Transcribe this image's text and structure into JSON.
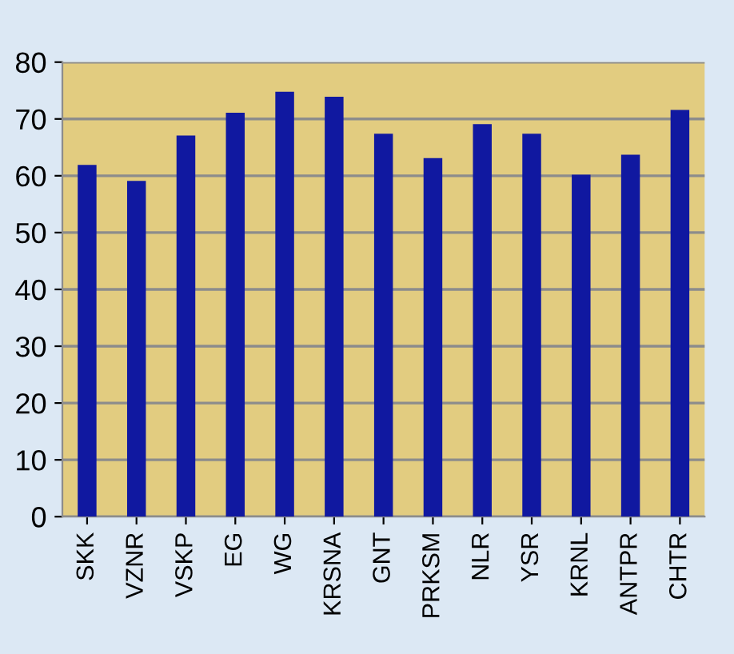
{
  "chart_data": {
    "type": "bar",
    "categories": [
      "SKK",
      "VZNR",
      "VSKP",
      "EG",
      "WG",
      "KRSNA",
      "GNT",
      "PRKSM",
      "NLR",
      "YSR",
      "KRNL",
      "ANTPR",
      "CHTR"
    ],
    "values": [
      61.9,
      59.1,
      67.1,
      71.1,
      74.8,
      73.9,
      67.4,
      63.1,
      69.1,
      67.4,
      60.2,
      63.7,
      71.6
    ],
    "color": "#1018a0",
    "ylim": [
      0,
      80
    ],
    "yticks": [
      0,
      10,
      20,
      30,
      40,
      50,
      60,
      70,
      80
    ],
    "grid": "y"
  }
}
